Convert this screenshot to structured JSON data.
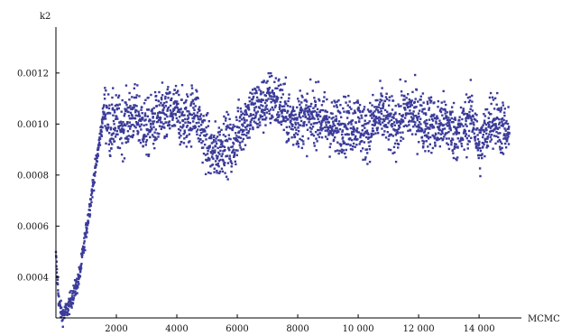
{
  "chart_data": {
    "type": "scatter",
    "title": "",
    "xlabel": "MCMC",
    "ylabel": "k2",
    "xlim": [
      0,
      15400
    ],
    "ylim": [
      0.00024,
      0.00138
    ],
    "x_ticks": [
      {
        "value": 2000,
        "label": "2000"
      },
      {
        "value": 4000,
        "label": "4000"
      },
      {
        "value": 6000,
        "label": "6000"
      },
      {
        "value": 8000,
        "label": "8000"
      },
      {
        "value": 10000,
        "label": "10 000"
      },
      {
        "value": 12000,
        "label": "12 000"
      },
      {
        "value": 14000,
        "label": "14 000"
      }
    ],
    "y_ticks": [
      {
        "value": 0.0004,
        "label": "0.0004"
      },
      {
        "value": 0.0006,
        "label": "0.0006"
      },
      {
        "value": 0.0008,
        "label": "0.0008"
      },
      {
        "value": 0.001,
        "label": "0.0010"
      },
      {
        "value": 0.0012,
        "label": "0.0012"
      }
    ],
    "grid": false,
    "marker_color": "#3b3b9a",
    "n_points": 15000,
    "series": [
      {
        "x": [
          0,
          100,
          200,
          300,
          400,
          500,
          600,
          700,
          800,
          900,
          1000,
          1100,
          1200,
          1300,
          1400,
          1500,
          1600,
          1700,
          1800,
          1900,
          2000,
          2200,
          2400,
          2600,
          2800,
          3000,
          3200,
          3400,
          3600,
          3800,
          4000,
          4200,
          4400,
          4600,
          4800,
          5000,
          5200,
          5400,
          5600,
          5800,
          6000,
          6200,
          6400,
          6600,
          6800,
          7000,
          7200,
          7400,
          7600,
          7800,
          8000,
          8200,
          8400,
          8600,
          8800,
          9000,
          9200,
          9400,
          9600,
          9800,
          10000,
          10200,
          10400,
          10600,
          10800,
          11000,
          11200,
          11400,
          11600,
          11800,
          12000,
          12200,
          12400,
          12600,
          12800,
          13000,
          13200,
          13400,
          13600,
          13800,
          14000,
          14200,
          14400,
          14600,
          14800,
          15000
        ],
        "y": [
          0.00048,
          0.0003,
          0.00025,
          0.00026,
          0.00028,
          0.00031,
          0.00034,
          0.00037,
          0.00042,
          0.0005,
          0.00058,
          0.00066,
          0.00074,
          0.00082,
          0.0009,
          0.00098,
          0.00106,
          0.00103,
          0.00097,
          0.00101,
          0.001,
          0.00099,
          0.00102,
          0.00104,
          0.00101,
          0.00098,
          0.001,
          0.00102,
          0.00103,
          0.00104,
          0.00105,
          0.00101,
          0.00102,
          0.00107,
          0.00098,
          0.00092,
          0.00088,
          0.0009,
          0.00094,
          0.0009,
          0.00096,
          0.00101,
          0.00104,
          0.00106,
          0.00107,
          0.00109,
          0.0011,
          0.00108,
          0.00104,
          0.00101,
          0.00102,
          0.00103,
          0.00101,
          0.00104,
          0.00102,
          0.001,
          0.00098,
          0.00101,
          0.00099,
          0.001,
          0.00101,
          0.00096,
          0.00099,
          0.00102,
          0.00104,
          0.001,
          0.00098,
          0.00102,
          0.00105,
          0.00104,
          0.00103,
          0.001,
          0.00101,
          0.00098,
          0.00101,
          0.00099,
          0.00097,
          0.00096,
          0.00101,
          0.00103,
          0.0009,
          0.00096,
          0.00103,
          0.00101,
          0.00098,
          0.00094
        ]
      }
    ]
  }
}
